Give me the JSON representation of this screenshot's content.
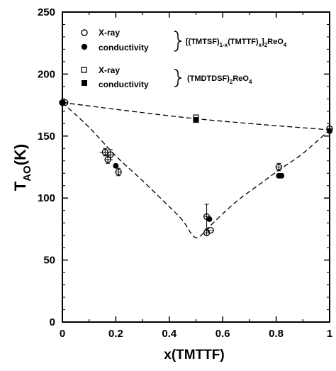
{
  "chart_data": {
    "type": "scatter",
    "x_axis": {
      "label_main": "x(",
      "label_var": "TMTTF",
      "label_close": ")",
      "range": [
        0,
        1
      ],
      "ticks": [
        0,
        0.2,
        0.4,
        0.6,
        0.8,
        1
      ],
      "tick_labels": [
        "0",
        "0.2",
        "0.4",
        "0.6",
        "0.8",
        "1"
      ]
    },
    "y_axis": {
      "label_main": "T",
      "label_sub": "AO",
      "label_rest": "(K)",
      "range": [
        0,
        250
      ],
      "ticks": [
        0,
        50,
        100,
        150,
        200,
        250
      ],
      "tick_labels": [
        "0",
        "50",
        "100",
        "150",
        "200",
        "250"
      ]
    },
    "legend": {
      "group1": {
        "items": [
          {
            "label": "X-ray",
            "marker": "open-circle"
          },
          {
            "label": "conductivity",
            "marker": "filled-circle"
          }
        ],
        "formula": {
          "p1": "[(TMTSF)",
          "s1": "1-x",
          "p2": "(TMTTF)",
          "s2": "x",
          "p3": "]",
          "s3": "2",
          "p4": "ReO",
          "s4": "4"
        }
      },
      "group2": {
        "items": [
          {
            "label": "X-ray",
            "marker": "open-square"
          },
          {
            "label": "conductivity",
            "marker": "filled-square"
          }
        ],
        "formula": {
          "p1": "(TMDTDSF)",
          "s1": "2",
          "p2": "ReO",
          "s2": "4"
        }
      }
    },
    "series": [
      {
        "marker": "open-circle",
        "points": [
          {
            "x": 0.0,
            "y": 177
          },
          {
            "x": 0.01,
            "y": 177
          },
          {
            "x": 0.16,
            "y": 137,
            "xerr": 0.02,
            "yerr": 3
          },
          {
            "x": 0.17,
            "y": 131,
            "yerr": 3
          },
          {
            "x": 0.18,
            "y": 135,
            "yerr": 4
          },
          {
            "x": 0.21,
            "y": 121,
            "yerr": 3
          },
          {
            "x": 0.54,
            "y": 85,
            "yerr": 10
          },
          {
            "x": 0.54,
            "y": 72,
            "yerr": 2
          },
          {
            "x": 0.555,
            "y": 74
          },
          {
            "x": 0.81,
            "y": 125,
            "yerr": 3
          },
          {
            "x": 1.0,
            "y": 156
          }
        ]
      },
      {
        "marker": "filled-circle",
        "points": [
          {
            "x": 0.0,
            "y": 177
          },
          {
            "x": 0.2,
            "y": 126
          },
          {
            "x": 0.55,
            "y": 83
          },
          {
            "x": 0.81,
            "y": 118
          },
          {
            "x": 0.82,
            "y": 118
          },
          {
            "x": 1.0,
            "y": 154
          }
        ]
      },
      {
        "marker": "open-square",
        "points": [
          {
            "x": 0.5,
            "y": 165
          }
        ]
      },
      {
        "marker": "filled-square",
        "points": [
          {
            "x": 0.5,
            "y": 163
          }
        ]
      }
    ],
    "dashed_curves": [
      {
        "points": [
          [
            0,
            177
          ],
          [
            0.5,
            164
          ],
          [
            1.0,
            155
          ]
        ]
      },
      {
        "points": [
          [
            0,
            177
          ],
          [
            0.1,
            157
          ],
          [
            0.2,
            134
          ],
          [
            0.3,
            114
          ],
          [
            0.4,
            93
          ],
          [
            0.45,
            82
          ],
          [
            0.48,
            72
          ],
          [
            0.5,
            68
          ],
          [
            0.52,
            70
          ],
          [
            0.55,
            77
          ],
          [
            0.65,
            97
          ],
          [
            0.75,
            113
          ],
          [
            0.82,
            124
          ],
          [
            0.9,
            136
          ],
          [
            1.0,
            155
          ]
        ]
      }
    ],
    "grid": false
  }
}
